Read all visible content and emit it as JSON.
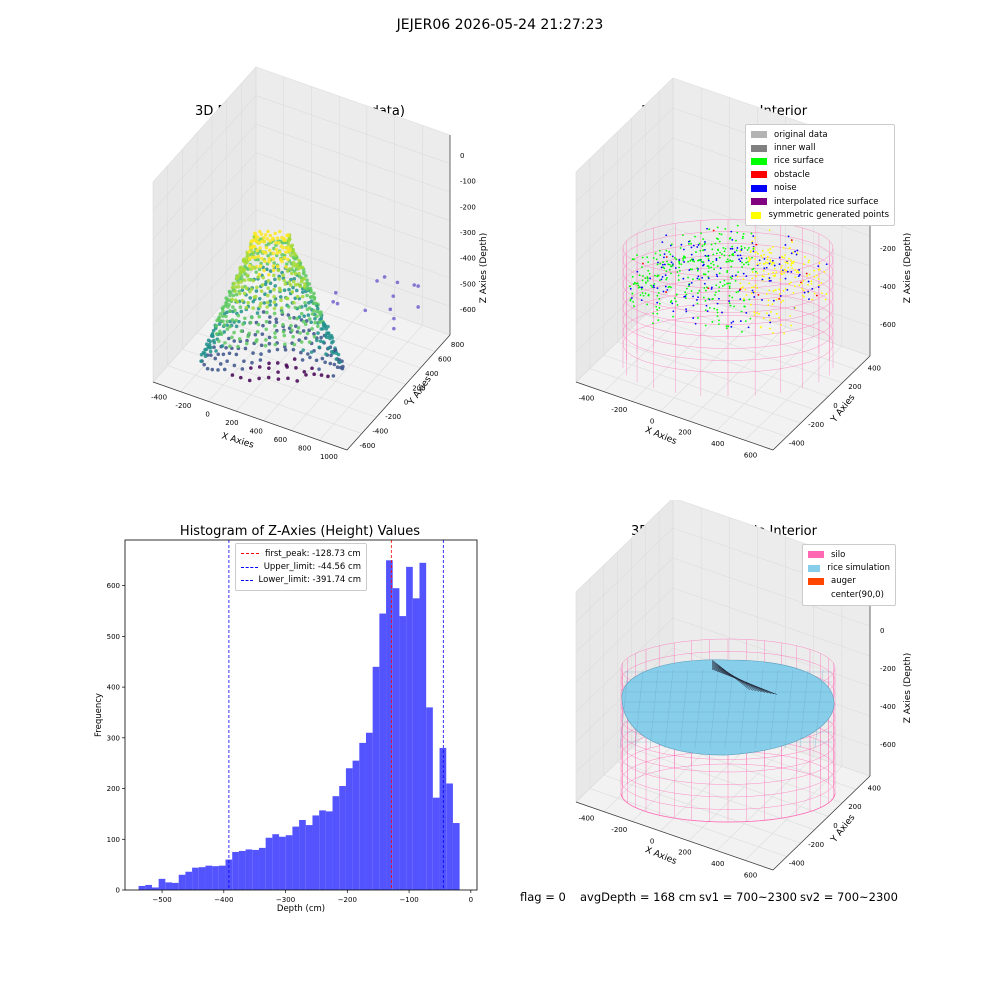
{
  "figure": {
    "suptitle": "JEJER06 2026-05-24 21:27:23"
  },
  "status_bar": {
    "flag": "flag = 0",
    "avg_depth": "avgDepth = 168 cm",
    "sv1": "sv1 = 700~2300",
    "sv2": "sv2 = 700~2300"
  },
  "chart_data": [
    {
      "type": "scatter",
      "subtype": "3d",
      "title": "3D Plot of Silo Interior(row data)",
      "xlabel": "X Axies",
      "ylabel": "Y Axies",
      "zlabel": "Z Axies (Depth)",
      "x_ticks": [
        "-400",
        "-200",
        "0",
        "200",
        "400",
        "600",
        "800",
        "1000"
      ],
      "y_ticks": [
        "-600",
        "-400",
        "-200",
        "0",
        "200",
        "400",
        "600",
        "800"
      ],
      "z_ticks": [
        "0",
        "-100",
        "-200",
        "-300",
        "-400",
        "-500",
        "-600"
      ],
      "xlim": [
        -450,
        1000
      ],
      "ylim": [
        -650,
        850
      ],
      "zlim": [
        -680,
        20
      ],
      "colormap": "viridis",
      "grid": true
    },
    {
      "type": "scatter",
      "subtype": "3d",
      "title": "3D classify of Silo Interior",
      "xlabel": "X Axies",
      "ylabel": "Y Axies",
      "zlabel": "Z Axies (Depth)",
      "x_ticks": [
        "-400",
        "-200",
        "0",
        "200",
        "400",
        "600"
      ],
      "y_ticks": [
        "-400",
        "-200",
        "0",
        "200",
        "400"
      ],
      "z_ticks": [
        "200",
        "0",
        "-200",
        "-400",
        "-600"
      ],
      "legend_position": "top-right",
      "legend": [
        {
          "label": "original data",
          "color": "#b3b3b3"
        },
        {
          "label": "inner wall",
          "color": "#808080"
        },
        {
          "label": "rice surface",
          "color": "#00ff00"
        },
        {
          "label": "obstacle",
          "color": "#ff0000"
        },
        {
          "label": "noise",
          "color": "#0000ff"
        },
        {
          "label": "interpolated rice surface",
          "color": "#800080"
        },
        {
          "label": "symmetric generated points",
          "color": "#ffff00"
        }
      ],
      "silo_color": "#ff69b4",
      "grid": true
    },
    {
      "type": "bar",
      "subtype": "histogram",
      "title": "Histogram of Z-Axies (Height) Values",
      "xlabel": "Depth (cm)",
      "ylabel": "Frequency",
      "xlim": [
        -560,
        10
      ],
      "ylim": [
        0,
        690
      ],
      "x_ticks": [
        -500,
        -400,
        -300,
        -200,
        -100,
        0
      ],
      "y_ticks": [
        0,
        100,
        200,
        300,
        400,
        500,
        600
      ],
      "bar_color": "#4b4bff",
      "bin_start": -538,
      "bin_width": 10.83,
      "values": [
        8,
        10,
        5,
        22,
        15,
        14,
        30,
        36,
        44,
        45,
        48,
        47,
        48,
        60,
        75,
        77,
        80,
        79,
        83,
        103,
        110,
        105,
        108,
        125,
        138,
        128,
        147,
        157,
        155,
        185,
        205,
        240,
        255,
        290,
        310,
        440,
        545,
        650,
        595,
        540,
        637,
        575,
        645,
        360,
        182,
        280,
        210,
        132
      ],
      "reference_lines": [
        {
          "label": "first_peak: -128.73 cm",
          "value": -128.73,
          "color": "#ff0000"
        },
        {
          "label": "Upper_limit: -44.56 cm",
          "value": -44.56,
          "color": "#0000ff"
        },
        {
          "label": "Lower_limit: -391.74 cm",
          "value": -391.74,
          "color": "#0000ff"
        }
      ],
      "legend_position": "top-center",
      "grid": false
    },
    {
      "type": "surface",
      "subtype": "3d",
      "title": "3D simulation of Silo Interior",
      "xlabel": "X Axies",
      "ylabel": "Y Axies",
      "zlabel": "Z Axies (Depth)",
      "x_ticks": [
        "-400",
        "-200",
        "0",
        "200",
        "400",
        "600"
      ],
      "y_ticks": [
        "-400",
        "-200",
        "0",
        "200",
        "400"
      ],
      "z_ticks": [
        "200",
        "0",
        "-200",
        "-400",
        "-600"
      ],
      "legend_position": "top-right",
      "legend": [
        {
          "label": "silo",
          "color": "#ff69b4"
        },
        {
          "label": "rice simulation",
          "color": "#87ceeb"
        },
        {
          "label": "auger",
          "color": "#ff4500"
        },
        {
          "label": "center(90,0)",
          "color": "#ffffff"
        }
      ],
      "grid": true
    }
  ]
}
